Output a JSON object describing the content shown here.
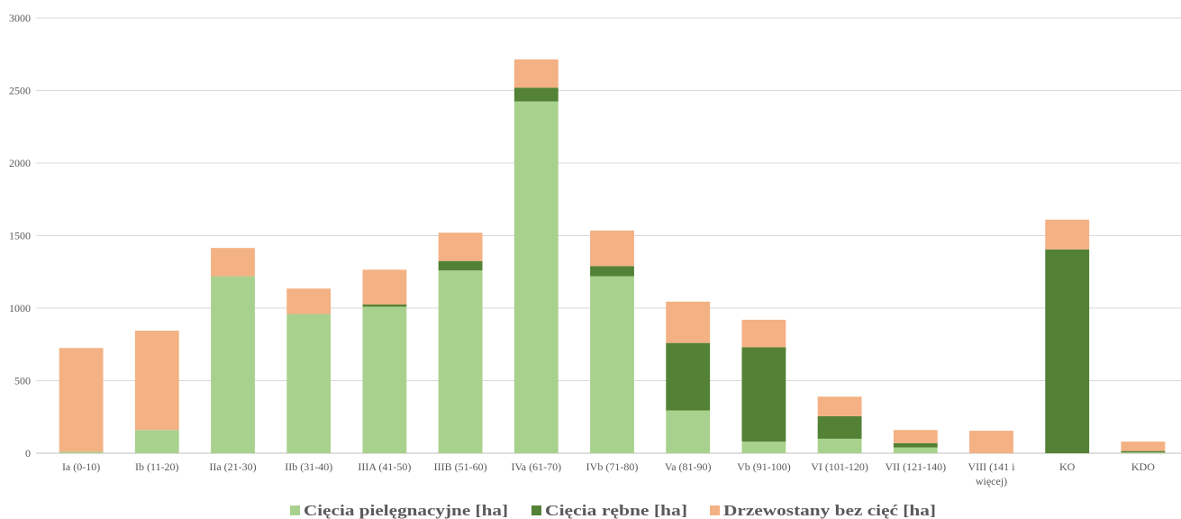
{
  "chart_data": {
    "type": "bar",
    "stacked": true,
    "categories": [
      [
        "Ia (0-10)"
      ],
      [
        "Ib (11-20)"
      ],
      [
        "IIa (21-30)"
      ],
      [
        "IIb (31-40)"
      ],
      [
        "IIIA (41-50)"
      ],
      [
        "IIIB (51-60)"
      ],
      [
        "IVa (61-70)"
      ],
      [
        "IVb (71-80)"
      ],
      [
        "Va (81-90)"
      ],
      [
        "Vb (91-100)"
      ],
      [
        "VI (101-120)"
      ],
      [
        "VII (121-140)"
      ],
      [
        "VIII (141 i",
        "więcej)"
      ],
      [
        "KO"
      ],
      [
        "KDO"
      ]
    ],
    "series": [
      {
        "name": "Cięcia pielęgnacyjne [ha]",
        "color": "#a9d18e",
        "values": [
          10,
          160,
          1220,
          960,
          1010,
          1260,
          2425,
          1220,
          295,
          80,
          100,
          40,
          0,
          0,
          5
        ]
      },
      {
        "name": "Cięcia rębne [ha]",
        "color": "#538135",
        "values": [
          0,
          0,
          0,
          0,
          15,
          65,
          95,
          70,
          465,
          650,
          155,
          30,
          0,
          1405,
          10
        ]
      },
      {
        "name": "Drzewostany bez cięć [ha]",
        "color": "#f4b183",
        "values": [
          715,
          685,
          195,
          175,
          240,
          195,
          195,
          245,
          285,
          190,
          135,
          90,
          155,
          205,
          65
        ]
      }
    ],
    "ylim": [
      0,
      3000
    ],
    "yticks": [
      0,
      500,
      1000,
      1500,
      2000,
      2500,
      3000
    ],
    "grid": true,
    "legend_position": "bottom"
  }
}
